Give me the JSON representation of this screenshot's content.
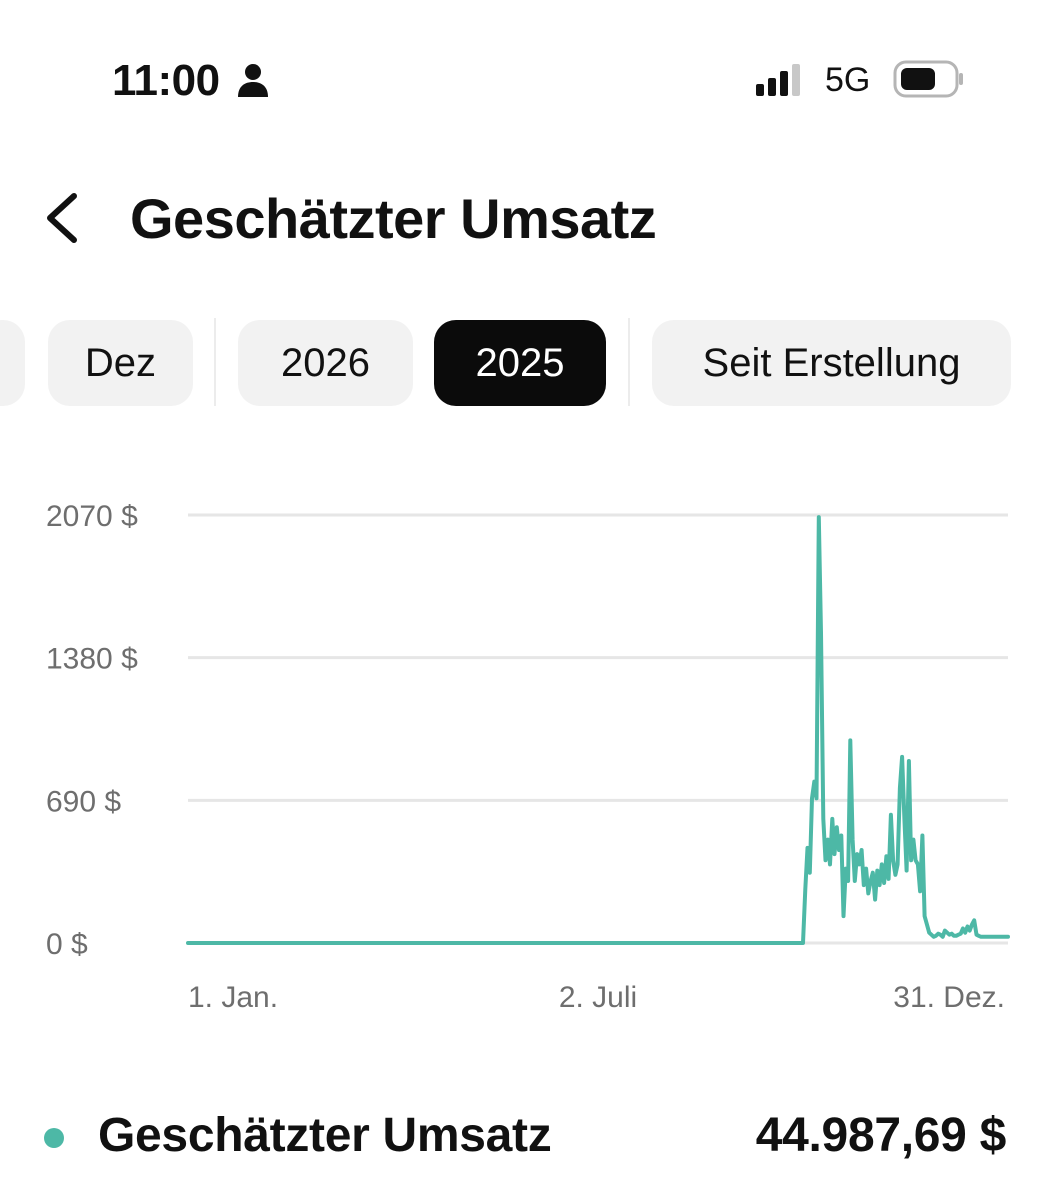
{
  "status_bar": {
    "time": "11:00",
    "network": "5G",
    "icons": [
      "person-icon",
      "signal-icon",
      "battery-icon"
    ]
  },
  "header": {
    "back_icon": "chevron-left-icon",
    "title": "Geschätzter Umsatz"
  },
  "tabs": [
    {
      "label": ""
    },
    {
      "label": "Dez"
    },
    {
      "label": "2026"
    },
    {
      "label": "2025",
      "active": true
    },
    {
      "label": "Seit Erstellung"
    }
  ],
  "chart_data": {
    "type": "line",
    "color": "#4db8a6",
    "y_ticks": [
      "2070 $",
      "1380 $",
      "690 $",
      "0 $"
    ],
    "y_tick_values": [
      2070,
      1380,
      690,
      0
    ],
    "ylim": [
      0,
      2070
    ],
    "x_ticks": [
      "1. Jan.",
      "2. Juli",
      "31. Dez."
    ],
    "x_tick_days": [
      0,
      182,
      364
    ],
    "xlim": [
      0,
      364
    ],
    "grid": true,
    "series": [
      {
        "x": [
          0,
          273,
          274,
          275,
          276,
          277,
          278,
          279,
          280,
          281,
          282,
          283,
          284,
          285,
          286,
          287,
          288,
          289,
          290,
          291,
          292,
          293,
          294,
          295,
          296,
          297,
          298,
          299,
          300,
          301,
          302,
          303,
          304,
          305,
          306,
          307,
          308,
          309,
          310,
          311,
          312,
          313,
          314,
          315,
          316,
          317,
          318,
          319,
          320,
          321,
          322,
          323,
          324,
          325,
          326,
          327,
          328,
          329,
          330,
          331,
          332,
          333,
          334,
          335,
          336,
          337,
          338,
          339,
          340,
          341,
          342,
          343,
          344,
          345,
          346,
          347,
          348,
          349,
          350,
          351,
          352,
          353,
          354,
          355,
          356,
          357,
          358,
          359,
          360,
          361,
          362,
          363,
          364
        ],
        "y": [
          0,
          0,
          260,
          460,
          340,
          700,
          780,
          700,
          2060,
          1500,
          600,
          400,
          500,
          380,
          600,
          430,
          560,
          450,
          520,
          130,
          360,
          300,
          980,
          500,
          300,
          430,
          380,
          450,
          280,
          360,
          240,
          300,
          340,
          210,
          350,
          280,
          380,
          290,
          420,
          310,
          620,
          400,
          330,
          380,
          750,
          900,
          600,
          350,
          880,
          400,
          500,
          400,
          380,
          250,
          520,
          130,
          90,
          50,
          40,
          30,
          35,
          45,
          40,
          30,
          60,
          50,
          40,
          45,
          35,
          35,
          40,
          45,
          70,
          50,
          80,
          60,
          90,
          110,
          40,
          35,
          30,
          30,
          30,
          30,
          30,
          30,
          30,
          30,
          30,
          30,
          30,
          30,
          30
        ]
      }
    ]
  },
  "legend": {
    "label": "Geschätzter Umsatz",
    "value": "44.987,69 $",
    "color": "#4db8a6"
  }
}
